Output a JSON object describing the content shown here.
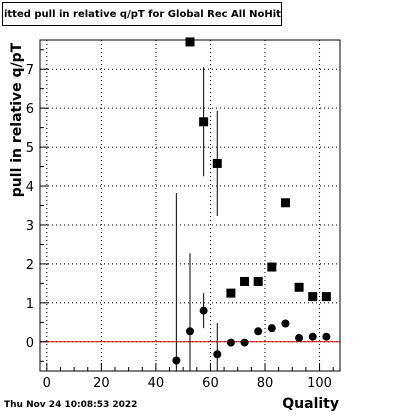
{
  "chart_data": {
    "type": "scatter",
    "title": "Fitted pull in relative q/pT for Global Rec All NoHits",
    "xlabel": "Quality",
    "ylabel": "pull in relative q/pT",
    "timestamp": "Thu Nov 24 10:08:53 2022",
    "xlim": [
      -2.5,
      107.5
    ],
    "ylim": [
      -0.75,
      7.75
    ],
    "x_ticks": [
      0,
      20,
      40,
      60,
      80,
      100
    ],
    "y_ticks": [
      0,
      1,
      2,
      3,
      4,
      5,
      6,
      7
    ],
    "grid": true,
    "reference_line": {
      "y": 0,
      "color": "#cc0000"
    },
    "colors": {
      "markers": "#000000",
      "frame": "#000000",
      "grid": "#000000"
    },
    "series": [
      {
        "marker": "square",
        "points": [
          {
            "x": 52.5,
            "y": 7.7
          },
          {
            "x": 57.5,
            "y": 5.65
          },
          {
            "x": 62.5,
            "y": 4.58
          },
          {
            "x": 67.5,
            "y": 1.25
          },
          {
            "x": 72.5,
            "y": 1.55
          },
          {
            "x": 77.5,
            "y": 1.55
          },
          {
            "x": 82.5,
            "y": 1.92
          },
          {
            "x": 87.5,
            "y": 3.57
          },
          {
            "x": 92.5,
            "y": 1.4
          },
          {
            "x": 97.5,
            "y": 1.16
          },
          {
            "x": 102.5,
            "y": 1.16
          }
        ]
      },
      {
        "marker": "circle",
        "points": [
          {
            "x": 47.5,
            "y": -0.48,
            "err": 4.3
          },
          {
            "x": 52.5,
            "y": 0.27,
            "err": 2.0
          },
          {
            "x": 57.5,
            "y": 0.8,
            "err": 0.45
          },
          {
            "x": 62.5,
            "y": -0.32,
            "err": 0.8
          },
          {
            "x": 67.5,
            "y": -0.02,
            "err": 0.05
          },
          {
            "x": 72.5,
            "y": -0.02,
            "err": 0.08
          },
          {
            "x": 77.5,
            "y": 0.27,
            "err": 0.05
          },
          {
            "x": 82.5,
            "y": 0.35,
            "err": 0.05
          },
          {
            "x": 87.5,
            "y": 0.47,
            "err": 0.05
          },
          {
            "x": 92.5,
            "y": 0.1,
            "err": 0.05
          },
          {
            "x": 97.5,
            "y": 0.13,
            "err": 0.05
          },
          {
            "x": 102.5,
            "y": 0.13,
            "err": 0.05
          }
        ]
      },
      {
        "marker": "errorbar-only",
        "points": [
          {
            "x": 57.5,
            "y": 5.65,
            "err": 1.4
          },
          {
            "x": 62.5,
            "y": 4.58,
            "err": 1.35
          }
        ]
      }
    ]
  }
}
